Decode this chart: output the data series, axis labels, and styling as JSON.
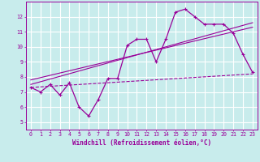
{
  "xlabel": "Windchill (Refroidissement éolien,°C)",
  "bg_color": "#c8ecec",
  "grid_color": "#ffffff",
  "line_color": "#990099",
  "xlim": [
    -0.5,
    23.5
  ],
  "ylim": [
    4.5,
    13.0
  ],
  "xticks": [
    0,
    1,
    2,
    3,
    4,
    5,
    6,
    7,
    8,
    9,
    10,
    11,
    12,
    13,
    14,
    15,
    16,
    17,
    18,
    19,
    20,
    21,
    22,
    23
  ],
  "yticks": [
    5,
    6,
    7,
    8,
    9,
    10,
    11,
    12
  ],
  "curve1_x": [
    0,
    1,
    2,
    3,
    4,
    5,
    6,
    7,
    8,
    9,
    10,
    11,
    12,
    13,
    14,
    15,
    16,
    17,
    18,
    19,
    20,
    21,
    22,
    23
  ],
  "curve1_y": [
    7.3,
    7.0,
    7.5,
    6.8,
    7.6,
    6.0,
    5.4,
    6.5,
    7.9,
    7.9,
    10.1,
    10.5,
    10.5,
    9.0,
    10.5,
    12.3,
    12.5,
    12.0,
    11.5,
    11.5,
    11.5,
    10.9,
    9.5,
    8.3
  ],
  "line1_x": [
    0,
    23
  ],
  "line1_y": [
    7.5,
    11.6
  ],
  "line2_x": [
    0,
    23
  ],
  "line2_y": [
    7.8,
    11.3
  ],
  "line3_x": [
    0,
    23
  ],
  "line3_y": [
    7.3,
    8.2
  ],
  "font_size_label": 5.5,
  "font_size_tick": 4.8
}
